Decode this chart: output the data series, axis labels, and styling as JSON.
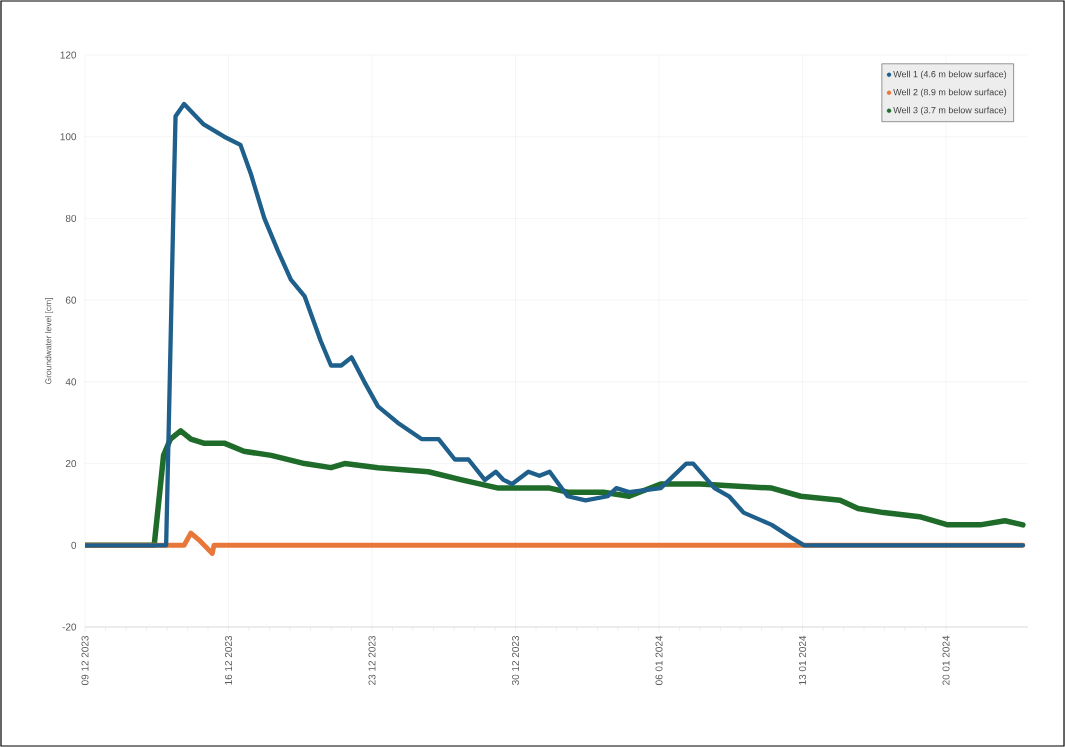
{
  "chart_data": {
    "type": "line",
    "ylabel": "Groundwater level [cm]",
    "xlim": [
      "2023-12-09",
      "2024-01-24"
    ],
    "ylim": [
      -20,
      120
    ],
    "yticks": [
      -20,
      0,
      20,
      40,
      60,
      80,
      100,
      120
    ],
    "xticks": [
      {
        "value": "2023-12-09",
        "label": "09 12 2023"
      },
      {
        "value": "2023-12-16",
        "label": "16 12 2023"
      },
      {
        "value": "2023-12-23",
        "label": "23 12 2023"
      },
      {
        "value": "2023-12-30",
        "label": "30 12 2023"
      },
      {
        "value": "2024-01-06",
        "label": "06 01 2024"
      },
      {
        "value": "2024-01-13",
        "label": "13 01 2024"
      },
      {
        "value": "2024-01-20",
        "label": "20 01 2024"
      }
    ],
    "grid": true,
    "legend": "top right",
    "series": [
      {
        "name": "Well 1 (4.6 m below surface)",
        "color": "#1f5f8b",
        "x": [
          "2023-12-09T00:00",
          "2023-12-12T23:00",
          "2023-12-13T03:00",
          "2023-12-13T08:00",
          "2023-12-13T10:00",
          "2023-12-13T20:00",
          "2023-12-14T19:00",
          "2023-12-15T19:00",
          "2023-12-16T14:00",
          "2023-12-17T02:00",
          "2023-12-17T18:00",
          "2023-12-18T10:00",
          "2023-12-19T01:00",
          "2023-12-19T17:00",
          "2023-12-20T12:00",
          "2023-12-21T00:00",
          "2023-12-21T12:00",
          "2023-12-22T00:00",
          "2023-12-22T15:00",
          "2023-12-23T07:00",
          "2023-12-24T06:00",
          "2023-12-25T10:00",
          "2023-12-26T06:00",
          "2023-12-27T01:00",
          "2023-12-27T17:00",
          "2023-12-28T12:00",
          "2023-12-29T01:00",
          "2023-12-29T10:00",
          "2023-12-29T20:00",
          "2023-12-30T15:00",
          "2023-12-31T04:00",
          "2023-12-31T16:00",
          "2024-01-01T13:00",
          "2024-01-02T10:00",
          "2024-01-03T12:00",
          "2024-01-03T22:00",
          "2024-01-04T13:00",
          "2024-01-06T02:00",
          "2024-01-07T08:00",
          "2024-01-07T16:00",
          "2024-01-08T17:00",
          "2024-01-09T10:00",
          "2024-01-10T03:00",
          "2024-01-11T12:00",
          "2024-01-12T10:00",
          "2024-01-13T02:00",
          "2024-01-23T18:00"
        ],
        "values": [
          0,
          0,
          38,
          87,
          105,
          108,
          103,
          100,
          98,
          91,
          80,
          72,
          65,
          61,
          50,
          44,
          44,
          46,
          40,
          34,
          30,
          26,
          26,
          21,
          21,
          16,
          18,
          16,
          15,
          18,
          17,
          18,
          12,
          11,
          12,
          14,
          13,
          14,
          20,
          20,
          14,
          12,
          8,
          5,
          2,
          0,
          0
        ]
      },
      {
        "name": "Well 2 (8.9 m below surface)",
        "color": "#e8773a",
        "x": [
          "2023-12-09T00:00",
          "2023-12-13T12:00",
          "2023-12-13T20:00",
          "2023-12-14T04:00",
          "2023-12-14T15:00",
          "2023-12-15T05:00",
          "2023-12-15T07:00",
          "2024-01-23T18:00"
        ],
        "values": [
          0,
          0,
          0,
          3,
          1,
          -2,
          0,
          0
        ]
      },
      {
        "name": "Well 3 (3.7 m below surface)",
        "color": "#1e6b2a",
        "x": [
          "2023-12-09T00:00",
          "2023-12-12T09:00",
          "2023-12-12T20:00",
          "2023-12-13T04:00",
          "2023-12-13T16:00",
          "2023-12-14T04:00",
          "2023-12-14T19:00",
          "2023-12-15T19:00",
          "2023-12-16T18:00",
          "2023-12-18T02:00",
          "2023-12-19T17:00",
          "2023-12-21T00:00",
          "2023-12-21T16:00",
          "2023-12-23T07:00",
          "2023-12-25T18:00",
          "2023-12-27T09:00",
          "2023-12-29T04:00",
          "2023-12-31T16:00",
          "2024-01-01T13:00",
          "2024-01-03T07:00",
          "2024-01-04T13:00",
          "2024-01-06T02:00",
          "2024-01-08T00:00",
          "2024-01-11T12:00",
          "2024-01-12T22:00",
          "2024-01-14T20:00",
          "2024-01-15T17:00",
          "2024-01-16T23:00",
          "2024-01-18T17:00",
          "2024-01-20T02:00",
          "2024-01-21T16:00",
          "2024-01-22T21:00",
          "2024-01-23T18:00"
        ],
        "values": [
          0,
          0,
          22,
          26,
          28,
          26,
          25,
          25,
          23,
          22,
          20,
          19,
          20,
          19,
          18,
          16,
          14,
          14,
          13,
          13,
          12,
          15,
          15,
          14,
          12,
          11,
          9,
          8,
          7,
          5,
          5,
          6,
          5
        ]
      }
    ]
  }
}
